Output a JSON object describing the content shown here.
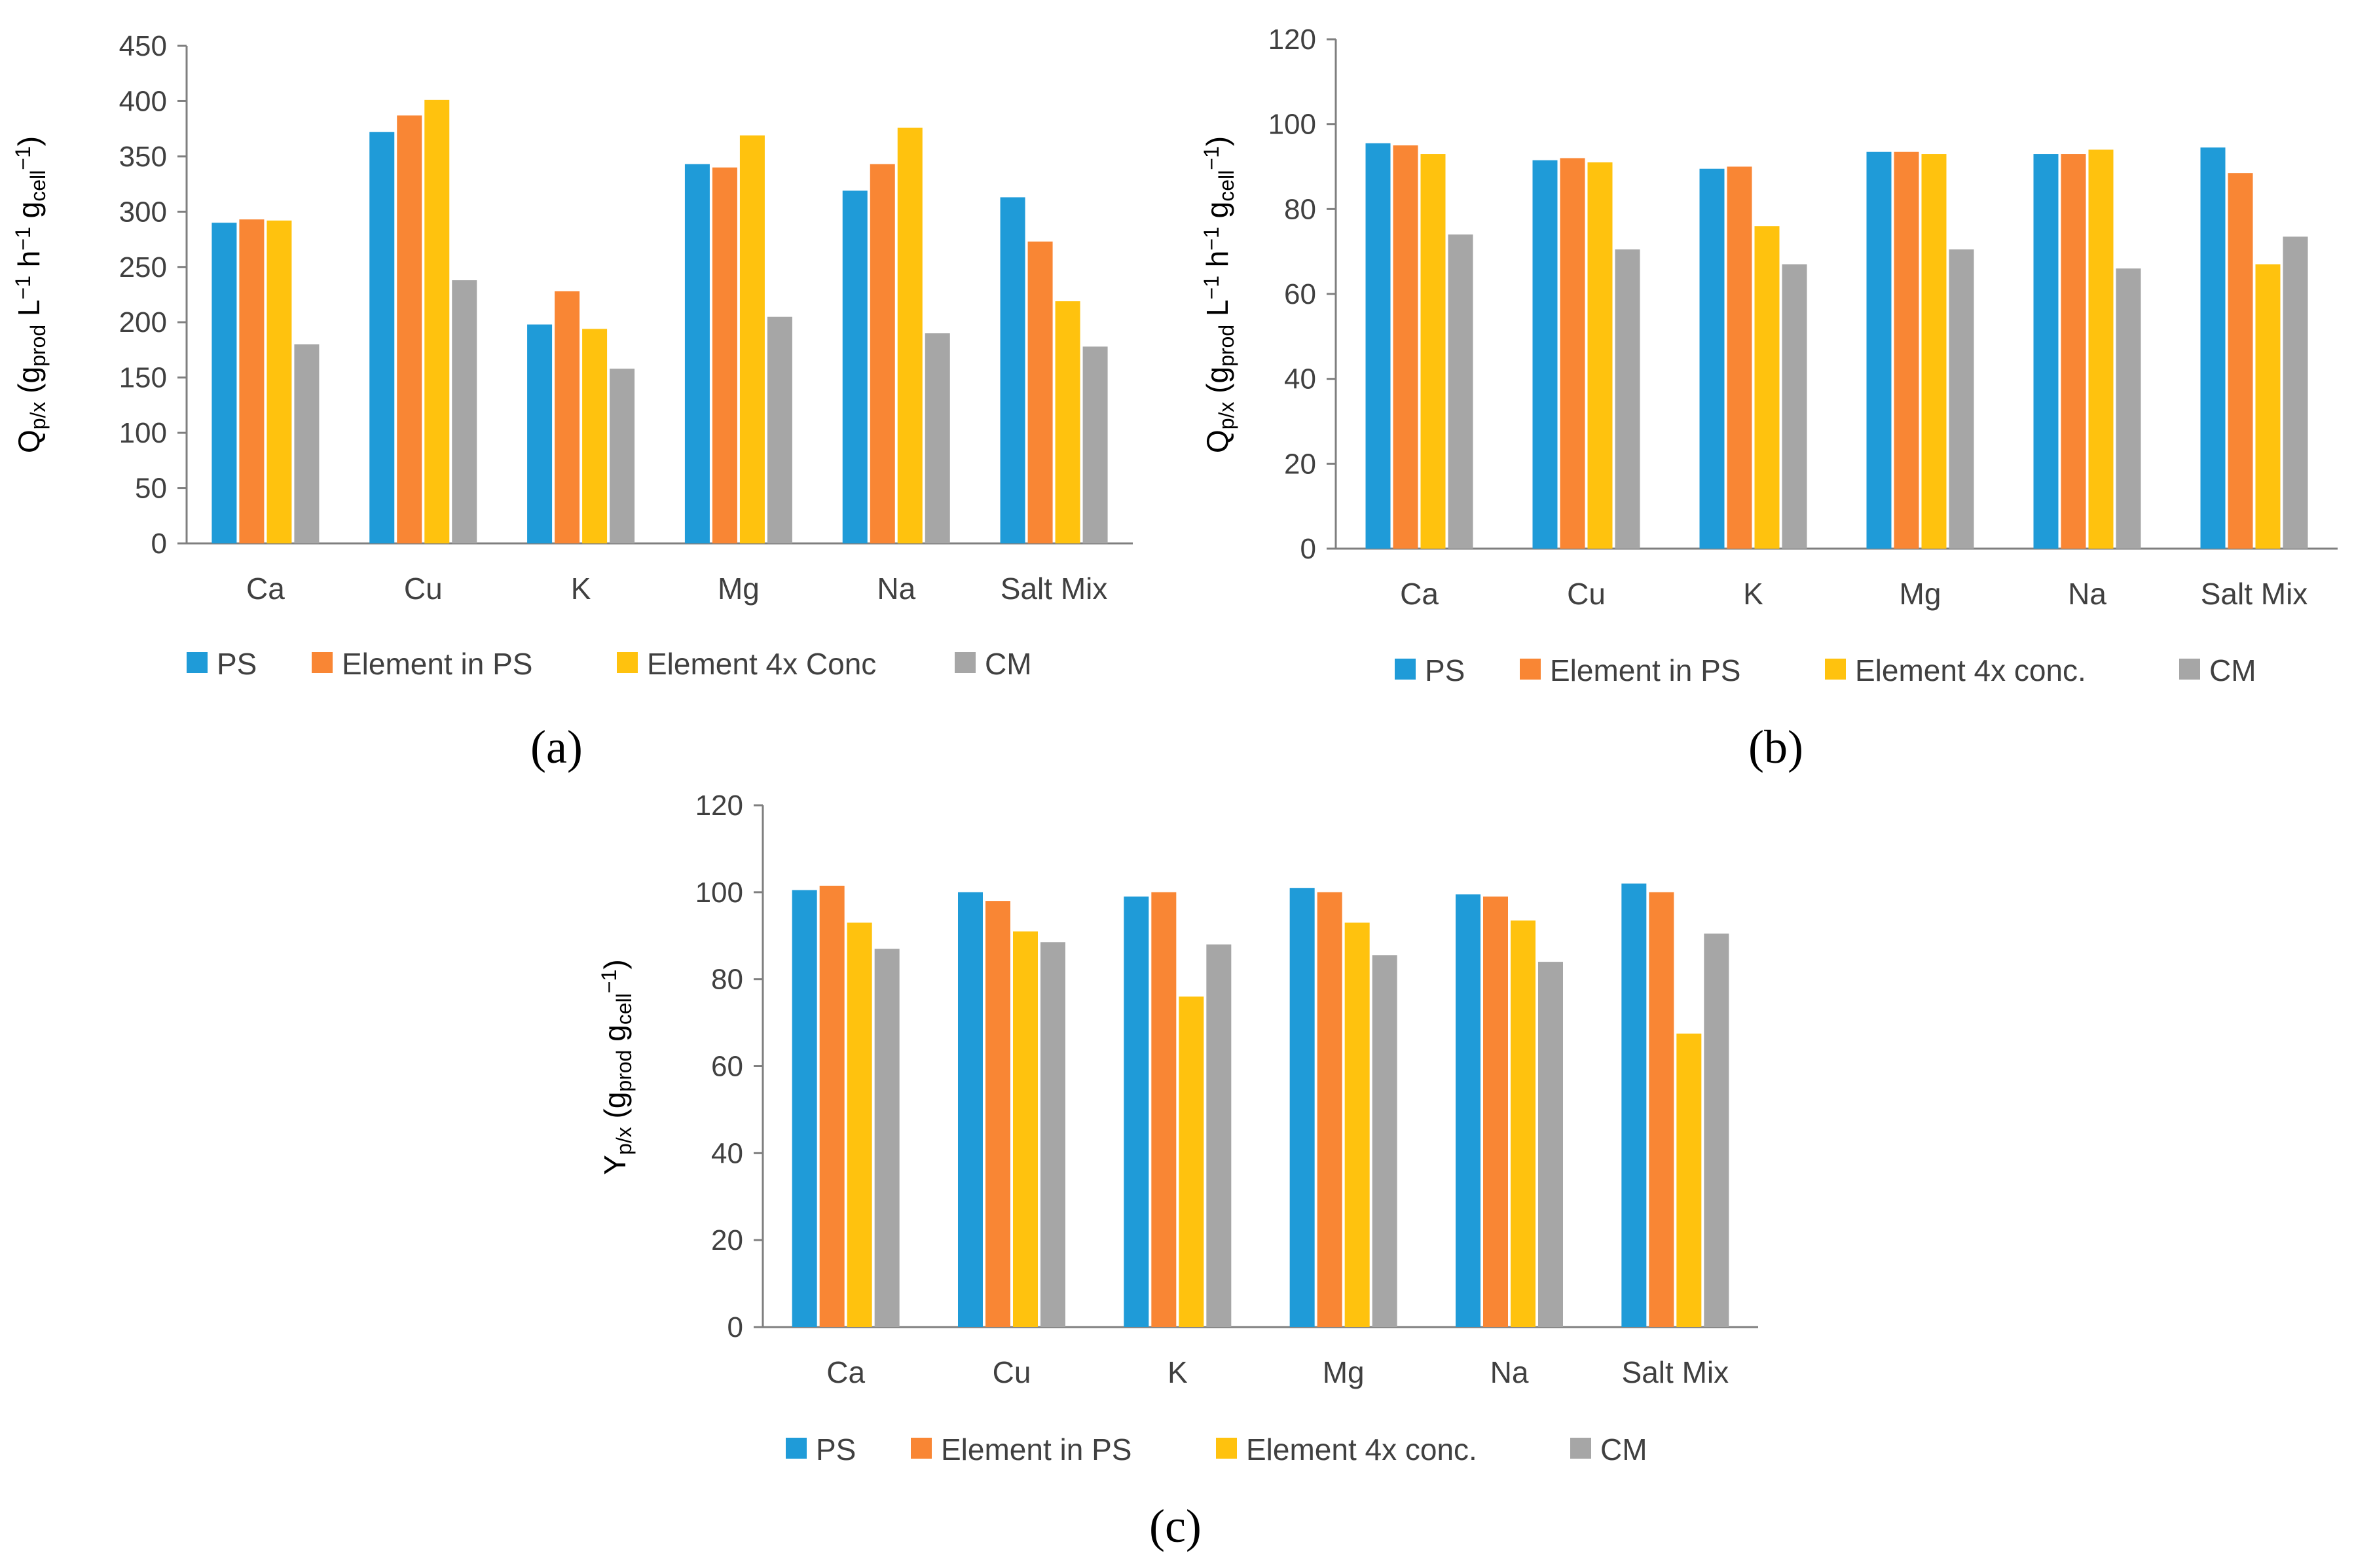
{
  "chart_data": [
    {
      "type": "bar",
      "panel_label": "(a)",
      "categories": [
        "Ca",
        "Cu",
        "K",
        "Mg",
        "Na",
        "Salt Mix"
      ],
      "series": [
        {
          "name": "PS",
          "color": "#1F9BD8",
          "values": [
            290,
            372,
            198,
            343,
            319,
            313
          ]
        },
        {
          "name": "Element in PS",
          "color": "#F98634",
          "values": [
            293,
            387,
            228,
            340,
            343,
            273
          ]
        },
        {
          "name": "Element 4x Conc",
          "color": "#FFC20E",
          "values": [
            292,
            401,
            194,
            369,
            376,
            219
          ]
        },
        {
          "name": "CM",
          "color": "#A6A6A6",
          "values": [
            180,
            238,
            158,
            205,
            190,
            178
          ]
        }
      ],
      "ylim": [
        0,
        450
      ],
      "yticks": [
        0,
        50,
        100,
        150,
        200,
        250,
        300,
        350,
        400,
        450
      ],
      "ylabel": {
        "main": "Q",
        "main_sub": "p/x",
        "open": " (",
        "g1": "g",
        "g1_sub": "prod",
        "unit_l": " L",
        "l_sup": "−1",
        "unit_h": " h",
        "h_sup": "−1",
        "g2": " g",
        "g2_sub": "cell",
        "g2_sup": "−1",
        "close": ")"
      },
      "xlabel": "",
      "legend_position": "bottom"
    },
    {
      "type": "bar",
      "panel_label": "(b)",
      "categories": [
        "Ca",
        "Cu",
        "K",
        "Mg",
        "Na",
        "Salt Mix"
      ],
      "series": [
        {
          "name": "PS",
          "color": "#1F9BD8",
          "values": [
            95.5,
            91.5,
            89.5,
            93.5,
            93,
            94.5
          ]
        },
        {
          "name": "Element in PS",
          "color": "#F98634",
          "values": [
            95,
            92,
            90,
            93.5,
            93,
            88.5
          ]
        },
        {
          "name": "Element 4x conc.",
          "color": "#FFC20E",
          "values": [
            93,
            91,
            76,
            93,
            94,
            67
          ]
        },
        {
          "name": "CM",
          "color": "#A6A6A6",
          "values": [
            74,
            70.5,
            67,
            70.5,
            66,
            73.5
          ]
        }
      ],
      "ylim": [
        0,
        120
      ],
      "yticks": [
        0,
        20,
        40,
        60,
        80,
        100,
        120
      ],
      "ylabel": {
        "main": "Q",
        "main_sub": "p/x",
        "open": " (",
        "g1": "g",
        "g1_sub": "prod",
        "unit_l": " L",
        "l_sup": "−1",
        "unit_h": " h",
        "h_sup": "−1",
        "g2": " g",
        "g2_sub": "cell",
        "g2_sup": "−1",
        "close": ")"
      },
      "xlabel": "",
      "legend_position": "bottom"
    },
    {
      "type": "bar",
      "panel_label": "(c)",
      "categories": [
        "Ca",
        "Cu",
        "K",
        "Mg",
        "Na",
        "Salt Mix"
      ],
      "series": [
        {
          "name": "PS",
          "color": "#1F9BD8",
          "values": [
            100.5,
            100,
            99,
            101,
            99.5,
            102
          ]
        },
        {
          "name": "Element in PS",
          "color": "#F98634",
          "values": [
            101.5,
            98,
            100,
            100,
            99,
            100
          ]
        },
        {
          "name": "Element 4x conc.",
          "color": "#FFC20E",
          "values": [
            93,
            91,
            76,
            93,
            93.5,
            67.5
          ]
        },
        {
          "name": "CM",
          "color": "#A6A6A6",
          "values": [
            87,
            88.5,
            88,
            85.5,
            84,
            90.5
          ]
        }
      ],
      "ylim": [
        0,
        120
      ],
      "yticks": [
        0,
        20,
        40,
        60,
        80,
        100,
        120
      ],
      "ylabel": {
        "main": "Y",
        "main_sub": "p/x",
        "open": " (",
        "g1": "g",
        "g1_sub": "prod",
        "unit_l": "",
        "l_sup": "",
        "unit_h": "",
        "h_sup": "",
        "g2": " g",
        "g2_sub": "cell",
        "g2_sup": "−1",
        "close": ")"
      },
      "xlabel": "",
      "legend_position": "bottom"
    }
  ]
}
